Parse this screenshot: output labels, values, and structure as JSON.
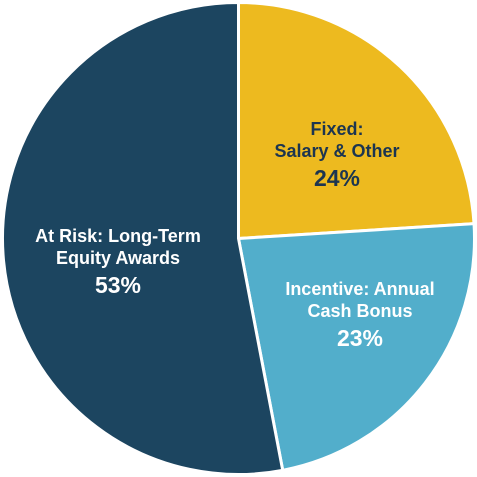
{
  "chart_data": {
    "type": "pie",
    "categories": [
      [
        "Fixed:",
        "Salary & Other"
      ],
      [
        "Incentive: Annual",
        "Cash Bonus"
      ],
      [
        "At Risk: Long-Term",
        "Equity Awards"
      ]
    ],
    "values": [
      24,
      23,
      53
    ],
    "value_labels": [
      "24%",
      "23%",
      "53%"
    ],
    "colors": [
      "#edba1f",
      "#52aecb",
      "#1c4560"
    ],
    "label_colors": [
      "#1c3550",
      "#ffffff",
      "#ffffff"
    ]
  }
}
